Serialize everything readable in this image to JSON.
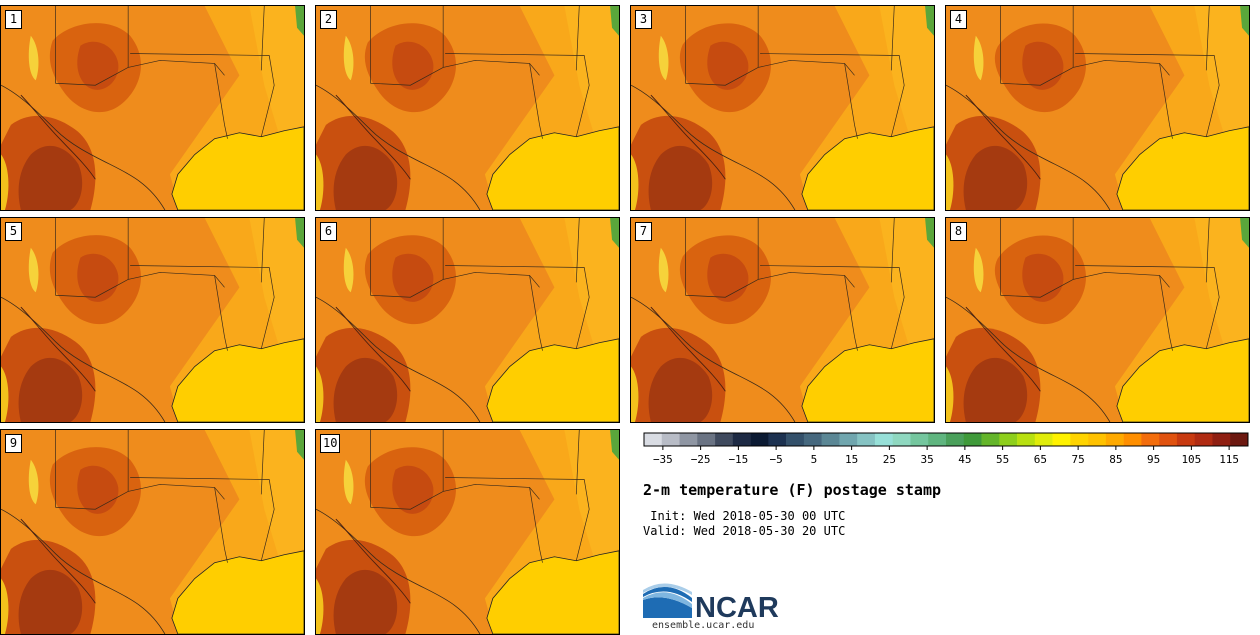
{
  "panels": [
    {
      "label": "1"
    },
    {
      "label": "2"
    },
    {
      "label": "3"
    },
    {
      "label": "4"
    },
    {
      "label": "5"
    },
    {
      "label": "6"
    },
    {
      "label": "7"
    },
    {
      "label": "8"
    },
    {
      "label": "9"
    },
    {
      "label": "10"
    }
  ],
  "colorbar": {
    "colors": [
      "#d9dce3",
      "#b8bcc6",
      "#8f96a3",
      "#6a7383",
      "#3f4a5e",
      "#1d2a44",
      "#0b1a33",
      "#1c3150",
      "#33506a",
      "#46687e",
      "#5b8795",
      "#70a6ae",
      "#86c3c3",
      "#97e0d8",
      "#8fd8c0",
      "#74c69e",
      "#5fb57f",
      "#4aa05b",
      "#3f9a3a",
      "#64b52a",
      "#8ecf1c",
      "#b8e010",
      "#e0ec0a",
      "#fff200",
      "#ffd400",
      "#ffc200",
      "#ffaa00",
      "#ff8f00",
      "#f36d0c",
      "#e0520f",
      "#c83a10",
      "#b02b12",
      "#8f1f12",
      "#6c1810"
    ],
    "tick_labels": [
      "−35",
      "−25",
      "−15",
      "−5",
      "5",
      "15",
      "25",
      "35",
      "45",
      "55",
      "65",
      "75",
      "85",
      "95",
      "105",
      "115"
    ],
    "tick_values": [
      -35,
      -25,
      -15,
      -5,
      5,
      15,
      25,
      35,
      45,
      55,
      65,
      75,
      85,
      95,
      105,
      115
    ],
    "min": -40,
    "max": 120
  },
  "title": "2-m temperature (F) postage stamp",
  "init_line": " Init: Wed 2018-05-30 00 UTC",
  "valid_line": "Valid: Wed 2018-05-30 20 UTC",
  "logo_text": "NCAR",
  "logo_url": "ensemble.ucar.edu"
}
